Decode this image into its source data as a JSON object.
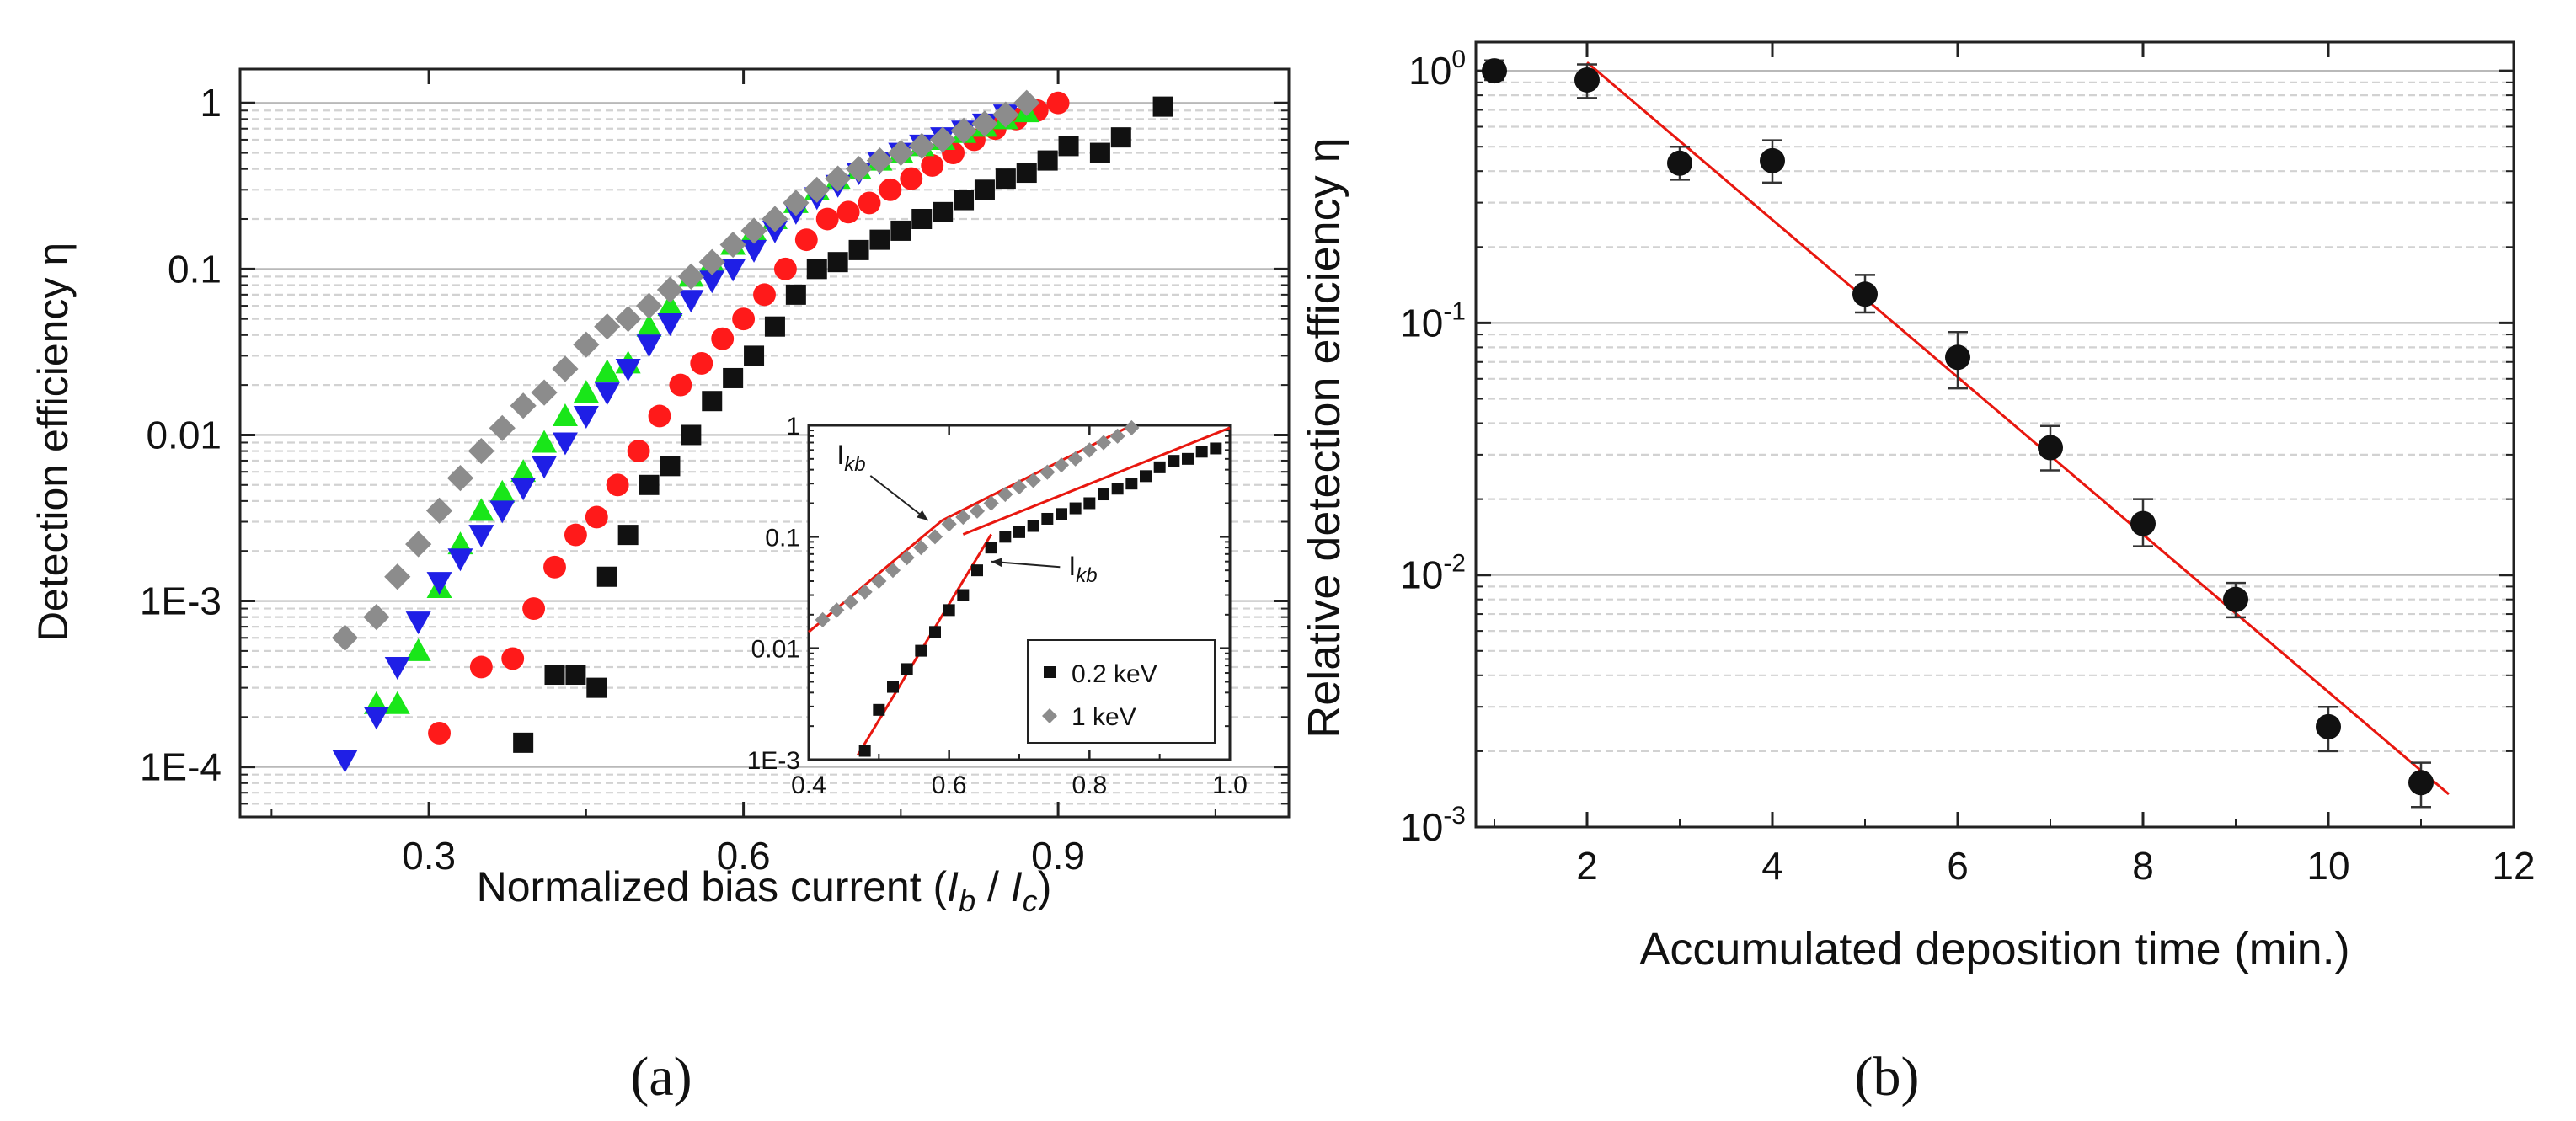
{
  "colors": {
    "black": "#111111",
    "red": "#ff1a1a",
    "blue": "#1f1fe6",
    "green": "#19e619",
    "gray": "#8c8c8c",
    "fit": "#e8170f"
  },
  "panel_labels": {
    "a": "(a)",
    "b": "(b)"
  },
  "chart_data": [
    {
      "id": "a-main",
      "type": "scatter",
      "title": "",
      "xlabel": "Normalized bias current (",
      "xlabel_sym1": "I",
      "xlabel_sub1": "b",
      "xlabel_mid": " / ",
      "xlabel_sym2": "I",
      "xlabel_sub2": "c",
      "xlabel_end": ")",
      "ylabel": "Detection efficiency η",
      "xscale": "linear",
      "yscale": "log",
      "xlim": [
        0.12,
        1.12
      ],
      "ylim": [
        5e-05,
        1.6
      ],
      "xticks": [
        {
          "v": 0.3,
          "label": "0.3"
        },
        {
          "v": 0.6,
          "label": "0.6"
        },
        {
          "v": 0.9,
          "label": "0.9"
        }
      ],
      "yticks": [
        {
          "v": 0.0001,
          "label": "1E-4"
        },
        {
          "v": 0.001,
          "label": "1E-3"
        },
        {
          "v": 0.01,
          "label": "0.01"
        },
        {
          "v": 0.1,
          "label": "0.1"
        },
        {
          "v": 1,
          "label": "1"
        }
      ],
      "grid": "horizontal-minor",
      "series": [
        {
          "name": "black squares",
          "marker": "square",
          "color": "#111111",
          "x": [
            0.39,
            0.42,
            0.44,
            0.46,
            0.47,
            0.49,
            0.51,
            0.53,
            0.55,
            0.57,
            0.59,
            0.61,
            0.63,
            0.65,
            0.67,
            0.69,
            0.71,
            0.73,
            0.75,
            0.77,
            0.79,
            0.81,
            0.83,
            0.85,
            0.87,
            0.89,
            0.91,
            0.94,
            0.96,
            1.0
          ],
          "y": [
            0.00014,
            0.00036,
            0.00036,
            0.0003,
            0.0014,
            0.0025,
            0.005,
            0.0065,
            0.01,
            0.016,
            0.022,
            0.03,
            0.045,
            0.07,
            0.1,
            0.11,
            0.13,
            0.15,
            0.17,
            0.2,
            0.22,
            0.26,
            0.3,
            0.35,
            0.38,
            0.45,
            0.55,
            0.5,
            0.62,
            0.95
          ]
        },
        {
          "name": "red circles",
          "marker": "circle",
          "color": "#ff1a1a",
          "x": [
            0.31,
            0.35,
            0.38,
            0.4,
            0.42,
            0.44,
            0.46,
            0.48,
            0.5,
            0.52,
            0.54,
            0.56,
            0.58,
            0.6,
            0.62,
            0.64,
            0.66,
            0.68,
            0.7,
            0.72,
            0.74,
            0.76,
            0.78,
            0.8,
            0.82,
            0.84,
            0.86,
            0.88,
            0.9
          ],
          "y": [
            0.00016,
            0.0004,
            0.00045,
            0.0009,
            0.0016,
            0.0025,
            0.0032,
            0.005,
            0.008,
            0.013,
            0.02,
            0.027,
            0.038,
            0.05,
            0.07,
            0.1,
            0.15,
            0.2,
            0.22,
            0.25,
            0.3,
            0.35,
            0.42,
            0.5,
            0.6,
            0.7,
            0.8,
            0.9,
            1.0
          ]
        },
        {
          "name": "green triangles",
          "marker": "triangle-up",
          "color": "#19e619",
          "x": [
            0.25,
            0.27,
            0.29,
            0.31,
            0.33,
            0.35,
            0.37,
            0.39,
            0.41,
            0.43,
            0.45,
            0.47,
            0.49,
            0.51,
            0.53,
            0.55,
            0.57,
            0.59,
            0.61,
            0.63,
            0.65,
            0.67,
            0.69,
            0.71,
            0.73,
            0.75,
            0.77,
            0.79,
            0.81,
            0.83,
            0.85,
            0.87
          ],
          "y": [
            0.00024,
            0.00024,
            0.0005,
            0.0012,
            0.0022,
            0.0035,
            0.0045,
            0.006,
            0.009,
            0.013,
            0.018,
            0.024,
            0.027,
            0.045,
            0.06,
            0.09,
            0.11,
            0.14,
            0.17,
            0.2,
            0.25,
            0.3,
            0.35,
            0.4,
            0.45,
            0.5,
            0.55,
            0.6,
            0.66,
            0.72,
            0.8,
            0.88
          ]
        },
        {
          "name": "blue triangles",
          "marker": "triangle-down",
          "color": "#1f1fe6",
          "x": [
            0.22,
            0.25,
            0.27,
            0.29,
            0.31,
            0.33,
            0.35,
            0.37,
            0.39,
            0.41,
            0.43,
            0.45,
            0.47,
            0.49,
            0.51,
            0.53,
            0.55,
            0.57,
            0.59,
            0.61,
            0.63,
            0.65,
            0.67,
            0.69,
            0.71,
            0.73,
            0.75,
            0.77,
            0.79,
            0.81,
            0.83,
            0.85
          ],
          "y": [
            0.00011,
            0.0002,
            0.0004,
            0.00075,
            0.0013,
            0.0018,
            0.0025,
            0.0035,
            0.0048,
            0.0065,
            0.009,
            0.013,
            0.018,
            0.025,
            0.035,
            0.047,
            0.065,
            0.085,
            0.1,
            0.13,
            0.17,
            0.22,
            0.27,
            0.32,
            0.38,
            0.44,
            0.5,
            0.56,
            0.62,
            0.68,
            0.75,
            0.85
          ]
        },
        {
          "name": "gray diamonds",
          "marker": "diamond",
          "color": "#8c8c8c",
          "x": [
            0.22,
            0.25,
            0.27,
            0.29,
            0.31,
            0.33,
            0.35,
            0.37,
            0.39,
            0.41,
            0.43,
            0.45,
            0.47,
            0.49,
            0.51,
            0.53,
            0.55,
            0.57,
            0.59,
            0.61,
            0.63,
            0.65,
            0.67,
            0.69,
            0.71,
            0.73,
            0.75,
            0.77,
            0.79,
            0.81,
            0.83,
            0.85,
            0.87
          ],
          "y": [
            0.0006,
            0.0008,
            0.0014,
            0.0022,
            0.0035,
            0.0055,
            0.008,
            0.011,
            0.015,
            0.018,
            0.025,
            0.035,
            0.045,
            0.05,
            0.06,
            0.075,
            0.09,
            0.11,
            0.14,
            0.17,
            0.2,
            0.25,
            0.3,
            0.35,
            0.4,
            0.45,
            0.5,
            0.55,
            0.6,
            0.68,
            0.75,
            0.85,
            1.0
          ]
        }
      ]
    },
    {
      "id": "a-inset",
      "type": "scatter",
      "xscale": "linear",
      "yscale": "log",
      "xlim": [
        0.4,
        1.0
      ],
      "ylim": [
        0.001,
        1.0
      ],
      "xticks": [
        {
          "v": 0.4,
          "label": "0.4"
        },
        {
          "v": 0.6,
          "label": "0.6"
        },
        {
          "v": 0.8,
          "label": "0.8"
        },
        {
          "v": 1.0,
          "label": "1.0"
        }
      ],
      "yticks": [
        {
          "v": 0.001,
          "label": "1E-3"
        },
        {
          "v": 0.01,
          "label": "0.01"
        },
        {
          "v": 0.1,
          "label": "0.1"
        },
        {
          "v": 1,
          "label": "1"
        }
      ],
      "annotations": [
        {
          "text": "I",
          "sub": "kb",
          "x": 0.44,
          "y": 0.45,
          "arrow_to": [
            0.57,
            0.14
          ]
        },
        {
          "text": "I",
          "sub": "kb",
          "x": 0.77,
          "y": 0.045,
          "arrow_to": [
            0.66,
            0.06
          ]
        }
      ],
      "fit_lines": [
        {
          "name": "gray fit",
          "x": [
            0.4,
            0.59,
            0.86
          ],
          "y": [
            0.014,
            0.14,
            1.0
          ]
        },
        {
          "name": "black fit low",
          "x": [
            0.47,
            0.66
          ],
          "y": [
            0.0011,
            0.105
          ]
        },
        {
          "name": "black fit high",
          "x": [
            0.62,
            1.0
          ],
          "y": [
            0.105,
            0.95
          ]
        }
      ],
      "series": [
        {
          "name": "0.2 keV",
          "marker": "square",
          "color": "#111111",
          "x": [
            0.48,
            0.5,
            0.52,
            0.54,
            0.56,
            0.58,
            0.6,
            0.62,
            0.64,
            0.66,
            0.68,
            0.7,
            0.72,
            0.74,
            0.76,
            0.78,
            0.8,
            0.82,
            0.84,
            0.86,
            0.88,
            0.9,
            0.92,
            0.94,
            0.96,
            0.98
          ],
          "y": [
            0.0012,
            0.0028,
            0.0045,
            0.0065,
            0.0095,
            0.014,
            0.022,
            0.03,
            0.05,
            0.08,
            0.1,
            0.11,
            0.125,
            0.145,
            0.16,
            0.18,
            0.2,
            0.24,
            0.27,
            0.3,
            0.35,
            0.42,
            0.48,
            0.5,
            0.58,
            0.62
          ]
        },
        {
          "name": "1 keV",
          "marker": "diamond",
          "color": "#8c8c8c",
          "x": [
            0.42,
            0.44,
            0.46,
            0.48,
            0.5,
            0.52,
            0.54,
            0.56,
            0.58,
            0.6,
            0.62,
            0.64,
            0.66,
            0.68,
            0.7,
            0.72,
            0.74,
            0.76,
            0.78,
            0.8,
            0.82,
            0.84,
            0.86
          ],
          "y": [
            0.018,
            0.022,
            0.026,
            0.032,
            0.04,
            0.05,
            0.065,
            0.08,
            0.1,
            0.13,
            0.15,
            0.17,
            0.2,
            0.24,
            0.28,
            0.32,
            0.38,
            0.44,
            0.5,
            0.6,
            0.7,
            0.8,
            0.95
          ]
        }
      ],
      "legend": [
        {
          "label": "0.2 keV",
          "marker": "square",
          "color": "#111111"
        },
        {
          "label": "1 keV",
          "marker": "diamond",
          "color": "#8c8c8c"
        }
      ],
      "legend_position": "bottom-right"
    },
    {
      "id": "b",
      "type": "scatter",
      "title": "",
      "xlabel": "Accumulated deposition time (min.)",
      "ylabel": "Relative detection efficiency η",
      "xscale": "linear",
      "yscale": "log",
      "xlim": [
        0.8,
        12.0
      ],
      "ylim": [
        0.001,
        1.3
      ],
      "xticks": [
        {
          "v": 2,
          "label": "2"
        },
        {
          "v": 4,
          "label": "4"
        },
        {
          "v": 6,
          "label": "6"
        },
        {
          "v": 8,
          "label": "8"
        },
        {
          "v": 10,
          "label": "10"
        },
        {
          "v": 12,
          "label": "12"
        }
      ],
      "yticks": [
        {
          "v": 0.001,
          "base": "10",
          "exp": "-3"
        },
        {
          "v": 0.01,
          "base": "10",
          "exp": "-2"
        },
        {
          "v": 0.1,
          "base": "10",
          "exp": "-1"
        },
        {
          "v": 1,
          "base": "10",
          "exp": "0"
        }
      ],
      "grid": "horizontal-minor",
      "series": [
        {
          "name": "data",
          "marker": "circle",
          "color": "#111111",
          "x": [
            1,
            2,
            3,
            4,
            5,
            6,
            7,
            8,
            9,
            10,
            11
          ],
          "y": [
            1.0,
            0.92,
            0.43,
            0.44,
            0.13,
            0.073,
            0.032,
            0.016,
            0.008,
            0.0025,
            0.0015
          ],
          "err_low": [
            0.92,
            0.78,
            0.37,
            0.36,
            0.11,
            0.055,
            0.026,
            0.013,
            0.0068,
            0.002,
            0.0012
          ],
          "err_high": [
            1.1,
            1.06,
            0.5,
            0.53,
            0.155,
            0.092,
            0.039,
            0.02,
            0.0093,
            0.003,
            0.0018
          ]
        }
      ],
      "fit_line": {
        "x": [
          2.0,
          11.3
        ],
        "y": [
          1.08,
          0.00135
        ],
        "color": "#e8170f"
      }
    }
  ]
}
